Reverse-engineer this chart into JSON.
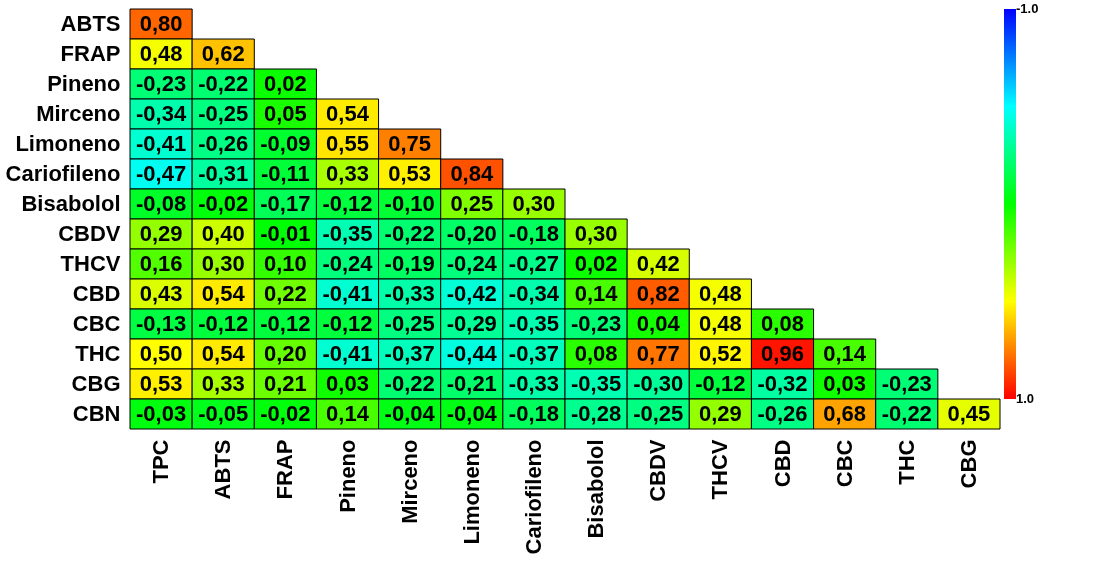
{
  "chart_data": {
    "type": "heatmap",
    "categories": [
      "TPC",
      "ABTS",
      "FRAP",
      "Pineno",
      "Mirceno",
      "Limoneno",
      "Cariofileno",
      "Bisabolol",
      "CBDV",
      "THCV",
      "CBD",
      "CBC",
      "THC",
      "CBG"
    ],
    "y_categories": [
      "ABTS",
      "FRAP",
      "Pineno",
      "Mirceno",
      "Limoneno",
      "Cariofileno",
      "Bisabolol",
      "CBDV",
      "THCV",
      "CBD",
      "CBC",
      "THC",
      "CBG",
      "CBN"
    ],
    "cells": [
      [
        0.8,
        null,
        null,
        null,
        null,
        null,
        null,
        null,
        null,
        null,
        null,
        null,
        null,
        null
      ],
      [
        0.48,
        0.62,
        null,
        null,
        null,
        null,
        null,
        null,
        null,
        null,
        null,
        null,
        null,
        null
      ],
      [
        -0.23,
        -0.22,
        0.02,
        null,
        null,
        null,
        null,
        null,
        null,
        null,
        null,
        null,
        null,
        null
      ],
      [
        -0.34,
        -0.25,
        0.05,
        0.54,
        null,
        null,
        null,
        null,
        null,
        null,
        null,
        null,
        null,
        null
      ],
      [
        -0.41,
        -0.26,
        -0.09,
        0.55,
        0.75,
        null,
        null,
        null,
        null,
        null,
        null,
        null,
        null,
        null
      ],
      [
        -0.47,
        -0.31,
        -0.11,
        0.33,
        0.53,
        0.84,
        null,
        null,
        null,
        null,
        null,
        null,
        null,
        null
      ],
      [
        -0.08,
        -0.02,
        -0.17,
        -0.12,
        -0.1,
        0.25,
        0.3,
        null,
        null,
        null,
        null,
        null,
        null,
        null
      ],
      [
        0.29,
        0.4,
        -0.01,
        -0.35,
        -0.22,
        -0.2,
        -0.18,
        0.3,
        null,
        null,
        null,
        null,
        null,
        null
      ],
      [
        0.16,
        0.3,
        0.1,
        -0.24,
        -0.19,
        -0.24,
        -0.27,
        0.02,
        0.42,
        null,
        null,
        null,
        null,
        null
      ],
      [
        0.43,
        0.54,
        0.22,
        -0.41,
        -0.33,
        -0.42,
        -0.34,
        0.14,
        0.82,
        0.48,
        null,
        null,
        null,
        null
      ],
      [
        -0.13,
        -0.12,
        -0.12,
        -0.12,
        -0.25,
        -0.29,
        -0.35,
        -0.23,
        0.04,
        0.48,
        0.08,
        null,
        null,
        null
      ],
      [
        0.5,
        0.54,
        0.2,
        -0.41,
        -0.37,
        -0.44,
        -0.37,
        0.08,
        0.77,
        0.52,
        0.96,
        0.14,
        null,
        null
      ],
      [
        0.53,
        0.33,
        0.21,
        0.03,
        -0.22,
        -0.21,
        -0.33,
        -0.35,
        -0.3,
        -0.12,
        -0.32,
        0.03,
        -0.23,
        null
      ],
      [
        -0.03,
        -0.05,
        -0.02,
        0.14,
        -0.04,
        -0.04,
        -0.18,
        -0.28,
        -0.25,
        0.29,
        -0.26,
        0.68,
        -0.22,
        0.45
      ]
    ],
    "cell_labels": [
      [
        "0,80",
        null,
        null,
        null,
        null,
        null,
        null,
        null,
        null,
        null,
        null,
        null,
        null,
        null
      ],
      [
        "0,48",
        "0,62",
        null,
        null,
        null,
        null,
        null,
        null,
        null,
        null,
        null,
        null,
        null,
        null
      ],
      [
        "-0,23",
        "-0,22",
        "0,02",
        null,
        null,
        null,
        null,
        null,
        null,
        null,
        null,
        null,
        null,
        null
      ],
      [
        "-0,34",
        "-0,25",
        "0,05",
        "0,54",
        null,
        null,
        null,
        null,
        null,
        null,
        null,
        null,
        null,
        null
      ],
      [
        "-0,41",
        "-0,26",
        "-0,09",
        "0,55",
        "0,75",
        null,
        null,
        null,
        null,
        null,
        null,
        null,
        null,
        null
      ],
      [
        "-0,47",
        "-0,31",
        "-0,11",
        "0,33",
        "0,53",
        "0,84",
        null,
        null,
        null,
        null,
        null,
        null,
        null,
        null
      ],
      [
        "-0,08",
        "-0,02",
        "-0,17",
        "-0,12",
        "-0,10",
        "0,25",
        "0,30",
        null,
        null,
        null,
        null,
        null,
        null,
        null
      ],
      [
        "0,29",
        "0,40",
        "-0,01",
        "-0,35",
        "-0,22",
        "-0,20",
        "-0,18",
        "0,30",
        null,
        null,
        null,
        null,
        null,
        null
      ],
      [
        "0,16",
        "0,30",
        "0,10",
        "-0,24",
        "-0,19",
        "-0,24",
        "-0,27",
        "0,02",
        "0,42",
        null,
        null,
        null,
        null,
        null
      ],
      [
        "0,43",
        "0,54",
        "0,22",
        "-0,41",
        "-0,33",
        "-0,42",
        "-0,34",
        "0,14",
        "0,82",
        "0,48",
        null,
        null,
        null,
        null
      ],
      [
        "-0,13",
        "-0,12",
        "-0,12",
        "-0,12",
        "-0,25",
        "-0,29",
        "-0,35",
        "-0,23",
        "0,04",
        "0,48",
        "0,08",
        null,
        null,
        null
      ],
      [
        "0,50",
        "0,54",
        "0,20",
        "-0,41",
        "-0,37",
        "-0,44",
        "-0,37",
        "0,08",
        "0,77",
        "0,52",
        "0,96",
        "0,14",
        null,
        null
      ],
      [
        "0,53",
        "0,33",
        "0,21",
        "0,03",
        "-0,22",
        "-0,21",
        "-0,33",
        "-0,35",
        "-0,30",
        "-0,12",
        "-0,32",
        "0,03",
        "-0,23",
        null
      ],
      [
        "-0,03",
        "-0,05",
        "-0,02",
        "0,14",
        "-0,04",
        "-0,04",
        "-0,18",
        "-0,28",
        "-0,25",
        "0,29",
        "-0,26",
        "0,68",
        "-0,22",
        "0,45"
      ]
    ],
    "clim": [
      -1,
      1
    ],
    "cticks": [
      {
        "value": -1,
        "label": "-1.0"
      },
      {
        "value": 1,
        "label": "1.0"
      }
    ]
  }
}
